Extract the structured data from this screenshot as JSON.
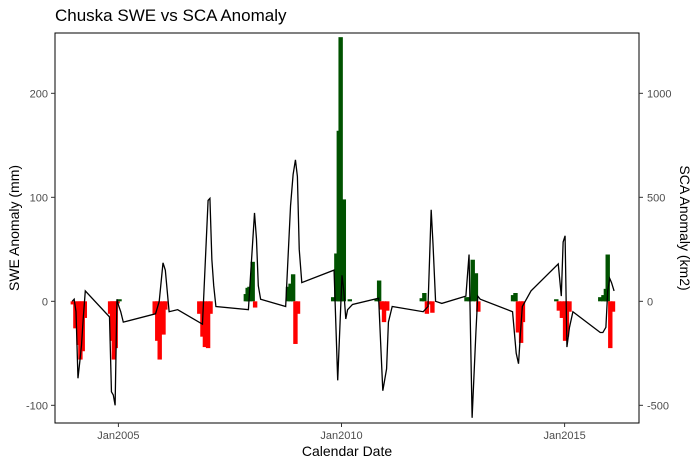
{
  "chart_data": {
    "type": "bar+line",
    "title": "Chuska SWE vs SCA Anomaly",
    "xlabel": "Calendar Date",
    "ylabel": "SWE Anomaly (mm)",
    "y2label": "SCA Anomaly (km2)",
    "ylim": [
      -117,
      258
    ],
    "y2lim": [
      -585,
      1290
    ],
    "xlim": [
      "2003-08-01",
      "2016-09-01"
    ],
    "yticks": [
      -100,
      0,
      100,
      200
    ],
    "y2ticks": [
      -500,
      0,
      500,
      1000
    ],
    "xticks": [
      {
        "date": "2005-01-01",
        "label": "Jan2005"
      },
      {
        "date": "2010-01-01",
        "label": "Jan2010"
      },
      {
        "date": "2015-01-01",
        "label": "Jan2015"
      }
    ],
    "grid": false,
    "colors": {
      "positive": "#005200",
      "negative": "#ff0000",
      "line": "#000000"
    },
    "series": [
      {
        "kind": "line",
        "axis": "left",
        "points": [
          [
            "2003-12-20",
            0
          ],
          [
            "2004-01-05",
            2
          ],
          [
            "2004-01-20",
            -10
          ],
          [
            "2004-02-05",
            -74
          ],
          [
            "2004-02-20",
            -58
          ],
          [
            "2004-03-05",
            -42
          ],
          [
            "2004-03-20",
            -15
          ],
          [
            "2004-04-05",
            10
          ],
          [
            "2004-10-20",
            -15
          ],
          [
            "2004-11-05",
            -87
          ],
          [
            "2004-11-20",
            -90
          ],
          [
            "2004-12-05",
            -100
          ],
          [
            "2004-12-20",
            2
          ],
          [
            "2005-01-05",
            -5
          ],
          [
            "2005-01-20",
            -10
          ],
          [
            "2005-02-10",
            -20
          ],
          [
            "2005-11-01",
            -12
          ],
          [
            "2005-12-01",
            0
          ],
          [
            "2006-01-01",
            37
          ],
          [
            "2006-01-20",
            30
          ],
          [
            "2006-02-20",
            -10
          ],
          [
            "2006-05-01",
            -8
          ],
          [
            "2006-11-20",
            -22
          ],
          [
            "2007-01-05",
            97
          ],
          [
            "2007-01-20",
            99
          ],
          [
            "2007-02-05",
            40
          ],
          [
            "2007-02-20",
            15
          ],
          [
            "2007-03-10",
            -5
          ],
          [
            "2007-12-01",
            -8
          ],
          [
            "2008-01-20",
            85
          ],
          [
            "2008-02-05",
            60
          ],
          [
            "2008-02-20",
            15
          ],
          [
            "2008-03-10",
            2
          ],
          [
            "2008-10-01",
            -5
          ],
          [
            "2008-11-10",
            92
          ],
          [
            "2008-12-01",
            122
          ],
          [
            "2008-12-20",
            136
          ],
          [
            "2009-01-05",
            120
          ],
          [
            "2009-01-20",
            50
          ],
          [
            "2009-02-10",
            18
          ],
          [
            "2009-11-01",
            30
          ],
          [
            "2009-12-01",
            -76
          ],
          [
            "2010-01-05",
            25
          ],
          [
            "2010-01-20",
            10
          ],
          [
            "2010-02-05",
            -17
          ],
          [
            "2010-02-20",
            -8
          ],
          [
            "2010-04-01",
            -3
          ],
          [
            "2010-11-01",
            3
          ],
          [
            "2010-12-05",
            -86
          ],
          [
            "2011-01-05",
            -65
          ],
          [
            "2011-01-20",
            -20
          ],
          [
            "2011-02-20",
            -5
          ],
          [
            "2011-11-01",
            -10
          ],
          [
            "2011-12-10",
            -5
          ],
          [
            "2012-01-05",
            88
          ],
          [
            "2012-01-20",
            55
          ],
          [
            "2012-02-10",
            0
          ],
          [
            "2012-04-01",
            -2
          ],
          [
            "2012-10-15",
            5
          ],
          [
            "2012-11-10",
            45
          ],
          [
            "2012-12-05",
            -112
          ],
          [
            "2013-01-05",
            -30
          ],
          [
            "2013-01-20",
            5
          ],
          [
            "2013-02-10",
            2
          ],
          [
            "2013-11-01",
            -10
          ],
          [
            "2013-12-01",
            -50
          ],
          [
            "2013-12-20",
            -60
          ],
          [
            "2014-01-05",
            -30
          ],
          [
            "2014-01-20",
            -5
          ],
          [
            "2014-04-01",
            10
          ],
          [
            "2014-11-10",
            36
          ],
          [
            "2014-12-05",
            5
          ],
          [
            "2014-12-20",
            57
          ],
          [
            "2015-01-05",
            63
          ],
          [
            "2015-01-20",
            -44
          ],
          [
            "2015-02-10",
            -25
          ],
          [
            "2015-03-10",
            -10
          ],
          [
            "2015-10-20",
            -30
          ],
          [
            "2015-11-10",
            -30
          ],
          [
            "2015-12-05",
            -25
          ],
          [
            "2015-12-20",
            10
          ],
          [
            "2016-01-05",
            22
          ],
          [
            "2016-01-20",
            18
          ],
          [
            "2016-02-10",
            10
          ]
        ]
      },
      {
        "kind": "bar",
        "axis": "right",
        "points": [
          [
            "2003-12-25",
            -15
          ],
          [
            "2004-01-15",
            -130
          ],
          [
            "2004-02-10",
            -210
          ],
          [
            "2004-02-25",
            -280
          ],
          [
            "2004-03-15",
            -240
          ],
          [
            "2004-04-01",
            -80
          ],
          [
            "2004-10-25",
            -60
          ],
          [
            "2004-11-10",
            -190
          ],
          [
            "2004-11-25",
            -280
          ],
          [
            "2004-12-10",
            -225
          ],
          [
            "2004-12-25",
            -10
          ],
          [
            "2005-01-10",
            10
          ],
          [
            "2005-10-25",
            -60
          ],
          [
            "2005-11-15",
            -190
          ],
          [
            "2005-12-05",
            -280
          ],
          [
            "2006-01-05",
            -160
          ],
          [
            "2006-01-20",
            -40
          ],
          [
            "2006-10-25",
            -60
          ],
          [
            "2006-11-20",
            -170
          ],
          [
            "2006-12-10",
            -220
          ],
          [
            "2007-01-05",
            -225
          ],
          [
            "2007-01-25",
            -60
          ],
          [
            "2007-11-10",
            35
          ],
          [
            "2007-11-25",
            65
          ],
          [
            "2007-12-10",
            70
          ],
          [
            "2008-01-05",
            190
          ],
          [
            "2008-01-25",
            -30
          ],
          [
            "2008-10-20",
            70
          ],
          [
            "2008-11-10",
            85
          ],
          [
            "2008-12-01",
            130
          ],
          [
            "2008-12-20",
            -205
          ],
          [
            "2009-01-10",
            -60
          ],
          [
            "2009-10-25",
            20
          ],
          [
            "2009-11-20",
            230
          ],
          [
            "2009-12-10",
            820
          ],
          [
            "2009-12-25",
            1270
          ],
          [
            "2010-01-20",
            490
          ],
          [
            "2010-03-10",
            10
          ],
          [
            "2010-10-15",
            10
          ],
          [
            "2010-11-05",
            100
          ],
          [
            "2010-11-25",
            -40
          ],
          [
            "2010-12-15",
            -100
          ],
          [
            "2011-01-10",
            -45
          ],
          [
            "2011-10-20",
            15
          ],
          [
            "2011-11-10",
            40
          ],
          [
            "2011-12-01",
            -60
          ],
          [
            "2011-12-20",
            -15
          ],
          [
            "2012-01-15",
            -55
          ],
          [
            "2012-10-20",
            20
          ],
          [
            "2012-11-15",
            20
          ],
          [
            "2012-12-10",
            200
          ],
          [
            "2013-01-05",
            135
          ],
          [
            "2013-01-25",
            -50
          ],
          [
            "2013-11-05",
            30
          ],
          [
            "2013-11-25",
            40
          ],
          [
            "2013-12-15",
            -150
          ],
          [
            "2014-01-10",
            -200
          ],
          [
            "2014-01-25",
            -100
          ],
          [
            "2014-10-25",
            10
          ],
          [
            "2014-11-15",
            -45
          ],
          [
            "2014-12-10",
            -80
          ],
          [
            "2015-01-05",
            -190
          ],
          [
            "2015-01-20",
            -170
          ],
          [
            "2015-02-10",
            -50
          ],
          [
            "2015-10-20",
            20
          ],
          [
            "2015-11-15",
            30
          ],
          [
            "2015-12-05",
            60
          ],
          [
            "2015-12-20",
            225
          ],
          [
            "2016-01-10",
            -225
          ],
          [
            "2016-02-01",
            -50
          ]
        ]
      }
    ]
  }
}
